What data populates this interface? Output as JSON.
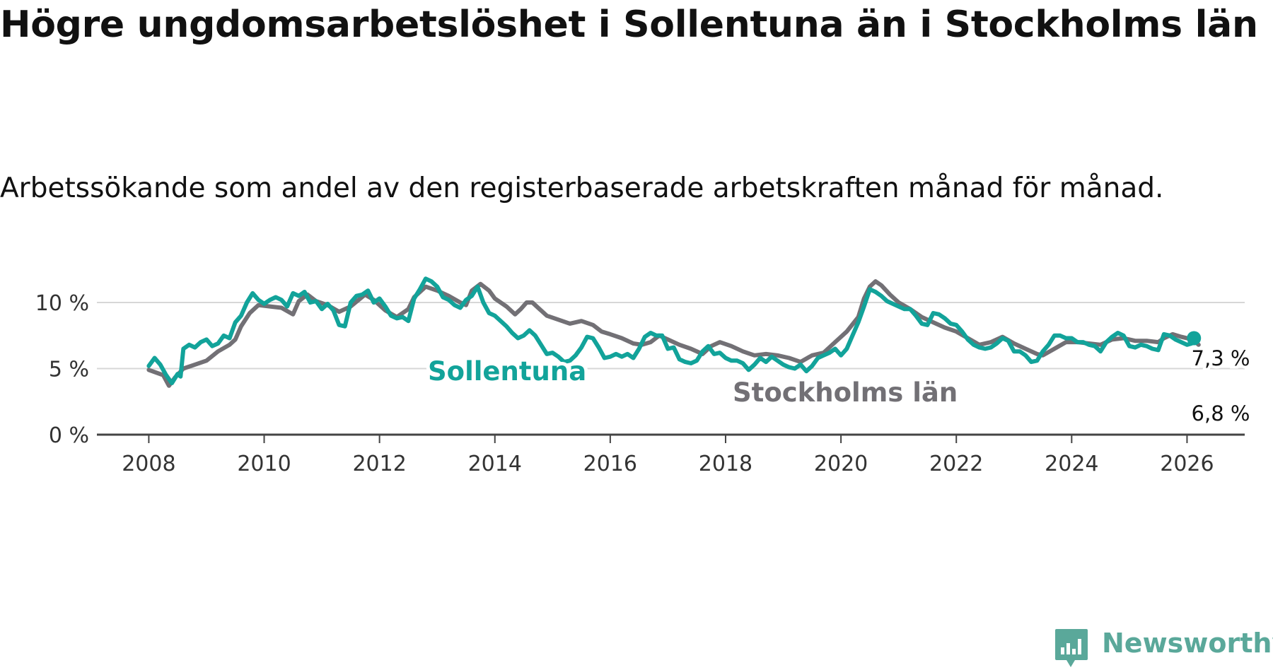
{
  "title": "Högre ungdomsarbetslöshet i Sollentuna än i Stockholms län",
  "subtitle": "Arbetssökande som andel av den registerbaserade arbetskraften månad för månad.",
  "brand": "Newsworthy",
  "colors": {
    "sollentuna": "#12a39a",
    "stockholm": "#727075",
    "grid": "#d7d7d7",
    "axis": "#444444",
    "brand": "#5aa89a"
  },
  "chart_data": {
    "type": "line",
    "title": "Högre ungdomsarbetslöshet i Sollentuna än i Stockholms län",
    "xlabel": "",
    "ylabel": "",
    "xlim": [
      2007.1,
      2027.0
    ],
    "ylim": [
      0,
      10
    ],
    "grid": true,
    "yticks": [
      {
        "value": 0,
        "label": "0 %"
      },
      {
        "value": 5,
        "label": "5 %"
      },
      {
        "value": 10,
        "label": "10 %"
      }
    ],
    "xticks": [
      {
        "value": 2008,
        "label": "2008"
      },
      {
        "value": 2010,
        "label": "2010"
      },
      {
        "value": 2012,
        "label": "2012"
      },
      {
        "value": 2014,
        "label": "2014"
      },
      {
        "value": 2016,
        "label": "2016"
      },
      {
        "value": 2018,
        "label": "2018"
      },
      {
        "value": 2020,
        "label": "2020"
      },
      {
        "value": 2022,
        "label": "2022"
      },
      {
        "value": 2024,
        "label": "2024"
      },
      {
        "value": 2026,
        "label": "2026"
      }
    ],
    "series": [
      {
        "name": "Stockholms län",
        "label": "Stockholms län",
        "color": "#727075",
        "points": [
          [
            2008.0,
            4.9
          ],
          [
            2008.25,
            4.5
          ],
          [
            2008.35,
            3.7
          ],
          [
            2008.45,
            4.3
          ],
          [
            2008.6,
            5.0
          ],
          [
            2008.8,
            5.3
          ],
          [
            2009.0,
            5.6
          ],
          [
            2009.2,
            6.3
          ],
          [
            2009.4,
            6.8
          ],
          [
            2009.5,
            7.2
          ],
          [
            2009.6,
            8.2
          ],
          [
            2009.75,
            9.2
          ],
          [
            2009.9,
            9.8
          ],
          [
            2010.1,
            9.7
          ],
          [
            2010.3,
            9.6
          ],
          [
            2010.5,
            9.1
          ],
          [
            2010.6,
            10.1
          ],
          [
            2010.75,
            10.6
          ],
          [
            2010.9,
            10.1
          ],
          [
            2011.1,
            9.8
          ],
          [
            2011.3,
            9.3
          ],
          [
            2011.5,
            9.7
          ],
          [
            2011.75,
            10.6
          ],
          [
            2011.9,
            10.2
          ],
          [
            2012.1,
            9.4
          ],
          [
            2012.3,
            8.9
          ],
          [
            2012.5,
            9.5
          ],
          [
            2012.6,
            10.4
          ],
          [
            2012.8,
            11.2
          ],
          [
            2013.0,
            10.9
          ],
          [
            2013.2,
            10.5
          ],
          [
            2013.4,
            10.0
          ],
          [
            2013.5,
            9.8
          ],
          [
            2013.6,
            10.9
          ],
          [
            2013.75,
            11.4
          ],
          [
            2013.9,
            10.9
          ],
          [
            2014.0,
            10.3
          ],
          [
            2014.2,
            9.7
          ],
          [
            2014.35,
            9.1
          ],
          [
            2014.45,
            9.5
          ],
          [
            2014.55,
            10.0
          ],
          [
            2014.65,
            10.0
          ],
          [
            2014.75,
            9.6
          ],
          [
            2014.9,
            9.0
          ],
          [
            2015.1,
            8.7
          ],
          [
            2015.3,
            8.4
          ],
          [
            2015.5,
            8.6
          ],
          [
            2015.7,
            8.3
          ],
          [
            2015.85,
            7.8
          ],
          [
            2016.0,
            7.6
          ],
          [
            2016.2,
            7.3
          ],
          [
            2016.4,
            6.9
          ],
          [
            2016.55,
            6.8
          ],
          [
            2016.7,
            7.0
          ],
          [
            2016.85,
            7.5
          ],
          [
            2017.0,
            7.2
          ],
          [
            2017.2,
            6.8
          ],
          [
            2017.4,
            6.5
          ],
          [
            2017.6,
            6.1
          ],
          [
            2017.75,
            6.7
          ],
          [
            2017.9,
            7.0
          ],
          [
            2018.1,
            6.7
          ],
          [
            2018.3,
            6.3
          ],
          [
            2018.5,
            6.0
          ],
          [
            2018.7,
            6.1
          ],
          [
            2018.9,
            6.0
          ],
          [
            2019.1,
            5.8
          ],
          [
            2019.3,
            5.5
          ],
          [
            2019.5,
            6.0
          ],
          [
            2019.7,
            6.2
          ],
          [
            2019.9,
            7.0
          ],
          [
            2020.1,
            7.8
          ],
          [
            2020.3,
            8.9
          ],
          [
            2020.4,
            10.3
          ],
          [
            2020.5,
            11.2
          ],
          [
            2020.6,
            11.6
          ],
          [
            2020.7,
            11.3
          ],
          [
            2020.85,
            10.6
          ],
          [
            2021.0,
            10.0
          ],
          [
            2021.2,
            9.5
          ],
          [
            2021.4,
            8.9
          ],
          [
            2021.6,
            8.5
          ],
          [
            2021.8,
            8.1
          ],
          [
            2022.0,
            7.8
          ],
          [
            2022.2,
            7.3
          ],
          [
            2022.4,
            6.8
          ],
          [
            2022.6,
            7.0
          ],
          [
            2022.8,
            7.4
          ],
          [
            2023.0,
            6.9
          ],
          [
            2023.2,
            6.5
          ],
          [
            2023.4,
            6.1
          ],
          [
            2023.5,
            6.0
          ],
          [
            2023.7,
            6.5
          ],
          [
            2023.9,
            7.0
          ],
          [
            2024.1,
            7.0
          ],
          [
            2024.3,
            6.9
          ],
          [
            2024.5,
            6.8
          ],
          [
            2024.7,
            7.2
          ],
          [
            2024.9,
            7.3
          ],
          [
            2025.1,
            7.1
          ],
          [
            2025.3,
            7.1
          ],
          [
            2025.5,
            7.0
          ],
          [
            2025.6,
            7.3
          ],
          [
            2025.75,
            7.6
          ],
          [
            2025.9,
            7.4
          ],
          [
            2026.1,
            7.2
          ],
          [
            2026.2,
            6.8
          ]
        ]
      },
      {
        "name": "Sollentuna",
        "label": "Sollentuna",
        "color": "#12a39a",
        "points": [
          [
            2008.0,
            5.2
          ],
          [
            2008.1,
            5.8
          ],
          [
            2008.2,
            5.3
          ],
          [
            2008.3,
            4.5
          ],
          [
            2008.4,
            3.9
          ],
          [
            2008.5,
            4.6
          ],
          [
            2008.55,
            4.4
          ],
          [
            2008.6,
            6.5
          ],
          [
            2008.7,
            6.8
          ],
          [
            2008.8,
            6.6
          ],
          [
            2008.9,
            7.0
          ],
          [
            2009.0,
            7.2
          ],
          [
            2009.1,
            6.7
          ],
          [
            2009.2,
            6.9
          ],
          [
            2009.3,
            7.5
          ],
          [
            2009.4,
            7.3
          ],
          [
            2009.5,
            8.5
          ],
          [
            2009.6,
            9.0
          ],
          [
            2009.7,
            10.0
          ],
          [
            2009.8,
            10.7
          ],
          [
            2009.9,
            10.2
          ],
          [
            2010.0,
            9.9
          ],
          [
            2010.1,
            10.2
          ],
          [
            2010.2,
            10.4
          ],
          [
            2010.3,
            10.2
          ],
          [
            2010.4,
            9.7
          ],
          [
            2010.5,
            10.7
          ],
          [
            2010.6,
            10.5
          ],
          [
            2010.7,
            10.8
          ],
          [
            2010.8,
            10.0
          ],
          [
            2010.9,
            10.1
          ],
          [
            2011.0,
            9.5
          ],
          [
            2011.1,
            9.9
          ],
          [
            2011.2,
            9.4
          ],
          [
            2011.3,
            8.3
          ],
          [
            2011.4,
            8.2
          ],
          [
            2011.5,
            10.0
          ],
          [
            2011.6,
            10.5
          ],
          [
            2011.7,
            10.6
          ],
          [
            2011.8,
            10.9
          ],
          [
            2011.9,
            10.0
          ],
          [
            2012.0,
            10.3
          ],
          [
            2012.1,
            9.7
          ],
          [
            2012.2,
            9.0
          ],
          [
            2012.3,
            8.8
          ],
          [
            2012.4,
            8.9
          ],
          [
            2012.5,
            8.6
          ],
          [
            2012.6,
            10.3
          ],
          [
            2012.7,
            11.0
          ],
          [
            2012.8,
            11.8
          ],
          [
            2012.9,
            11.6
          ],
          [
            2013.0,
            11.2
          ],
          [
            2013.1,
            10.4
          ],
          [
            2013.2,
            10.2
          ],
          [
            2013.3,
            9.8
          ],
          [
            2013.4,
            9.6
          ],
          [
            2013.5,
            10.2
          ],
          [
            2013.6,
            10.5
          ],
          [
            2013.7,
            11.2
          ],
          [
            2013.8,
            10.0
          ],
          [
            2013.9,
            9.2
          ],
          [
            2014.0,
            9.0
          ],
          [
            2014.2,
            8.2
          ],
          [
            2014.3,
            7.7
          ],
          [
            2014.4,
            7.3
          ],
          [
            2014.5,
            7.5
          ],
          [
            2014.6,
            7.9
          ],
          [
            2014.7,
            7.5
          ],
          [
            2014.8,
            6.8
          ],
          [
            2014.9,
            6.1
          ],
          [
            2015.0,
            6.2
          ],
          [
            2015.1,
            5.9
          ],
          [
            2015.2,
            5.5
          ],
          [
            2015.3,
            5.6
          ],
          [
            2015.4,
            6.0
          ],
          [
            2015.5,
            6.6
          ],
          [
            2015.6,
            7.4
          ],
          [
            2015.7,
            7.3
          ],
          [
            2015.8,
            6.6
          ],
          [
            2015.9,
            5.8
          ],
          [
            2016.0,
            5.9
          ],
          [
            2016.1,
            6.1
          ],
          [
            2016.2,
            5.9
          ],
          [
            2016.3,
            6.1
          ],
          [
            2016.4,
            5.8
          ],
          [
            2016.5,
            6.5
          ],
          [
            2016.6,
            7.4
          ],
          [
            2016.7,
            7.7
          ],
          [
            2016.8,
            7.5
          ],
          [
            2016.9,
            7.5
          ],
          [
            2017.0,
            6.5
          ],
          [
            2017.1,
            6.6
          ],
          [
            2017.2,
            5.7
          ],
          [
            2017.3,
            5.5
          ],
          [
            2017.4,
            5.4
          ],
          [
            2017.5,
            5.6
          ],
          [
            2017.6,
            6.3
          ],
          [
            2017.7,
            6.7
          ],
          [
            2017.8,
            6.1
          ],
          [
            2017.9,
            6.2
          ],
          [
            2018.0,
            5.8
          ],
          [
            2018.1,
            5.6
          ],
          [
            2018.2,
            5.6
          ],
          [
            2018.3,
            5.4
          ],
          [
            2018.4,
            4.9
          ],
          [
            2018.5,
            5.3
          ],
          [
            2018.6,
            5.8
          ],
          [
            2018.7,
            5.5
          ],
          [
            2018.8,
            5.9
          ],
          [
            2018.9,
            5.6
          ],
          [
            2019.0,
            5.3
          ],
          [
            2019.1,
            5.1
          ],
          [
            2019.2,
            5.0
          ],
          [
            2019.3,
            5.3
          ],
          [
            2019.4,
            4.8
          ],
          [
            2019.5,
            5.2
          ],
          [
            2019.6,
            5.8
          ],
          [
            2019.7,
            6.0
          ],
          [
            2019.8,
            6.2
          ],
          [
            2019.9,
            6.5
          ],
          [
            2020.0,
            6.0
          ],
          [
            2020.1,
            6.5
          ],
          [
            2020.2,
            7.5
          ],
          [
            2020.3,
            8.5
          ],
          [
            2020.4,
            9.7
          ],
          [
            2020.5,
            11.0
          ],
          [
            2020.6,
            10.8
          ],
          [
            2020.7,
            10.5
          ],
          [
            2020.8,
            10.1
          ],
          [
            2020.9,
            9.9
          ],
          [
            2021.0,
            9.7
          ],
          [
            2021.1,
            9.5
          ],
          [
            2021.2,
            9.5
          ],
          [
            2021.3,
            9.0
          ],
          [
            2021.4,
            8.4
          ],
          [
            2021.5,
            8.3
          ],
          [
            2021.6,
            9.2
          ],
          [
            2021.7,
            9.1
          ],
          [
            2021.8,
            8.8
          ],
          [
            2021.9,
            8.4
          ],
          [
            2022.0,
            8.3
          ],
          [
            2022.1,
            7.8
          ],
          [
            2022.2,
            7.2
          ],
          [
            2022.3,
            6.8
          ],
          [
            2022.4,
            6.6
          ],
          [
            2022.5,
            6.5
          ],
          [
            2022.6,
            6.6
          ],
          [
            2022.7,
            6.9
          ],
          [
            2022.8,
            7.3
          ],
          [
            2022.9,
            7.1
          ],
          [
            2023.0,
            6.3
          ],
          [
            2023.1,
            6.3
          ],
          [
            2023.2,
            6.0
          ],
          [
            2023.3,
            5.5
          ],
          [
            2023.4,
            5.6
          ],
          [
            2023.5,
            6.3
          ],
          [
            2023.6,
            6.8
          ],
          [
            2023.7,
            7.5
          ],
          [
            2023.8,
            7.5
          ],
          [
            2023.9,
            7.3
          ],
          [
            2024.0,
            7.3
          ],
          [
            2024.1,
            7.0
          ],
          [
            2024.2,
            7.0
          ],
          [
            2024.3,
            6.8
          ],
          [
            2024.4,
            6.7
          ],
          [
            2024.5,
            6.3
          ],
          [
            2024.6,
            7.0
          ],
          [
            2024.7,
            7.4
          ],
          [
            2024.8,
            7.7
          ],
          [
            2024.9,
            7.5
          ],
          [
            2025.0,
            6.7
          ],
          [
            2025.1,
            6.6
          ],
          [
            2025.2,
            6.8
          ],
          [
            2025.3,
            6.7
          ],
          [
            2025.4,
            6.5
          ],
          [
            2025.5,
            6.4
          ],
          [
            2025.6,
            7.6
          ],
          [
            2025.7,
            7.5
          ],
          [
            2025.8,
            7.2
          ],
          [
            2025.9,
            7.0
          ],
          [
            2026.0,
            6.8
          ],
          [
            2026.08,
            6.9
          ],
          [
            2026.12,
            7.3
          ]
        ]
      }
    ],
    "annotations": {
      "sollentuna_label": "Sollentuna",
      "stockholm_label": "Stockholms län",
      "sollentuna_last_value": "7,3 %",
      "stockholm_last_value": "6,8 %"
    }
  }
}
